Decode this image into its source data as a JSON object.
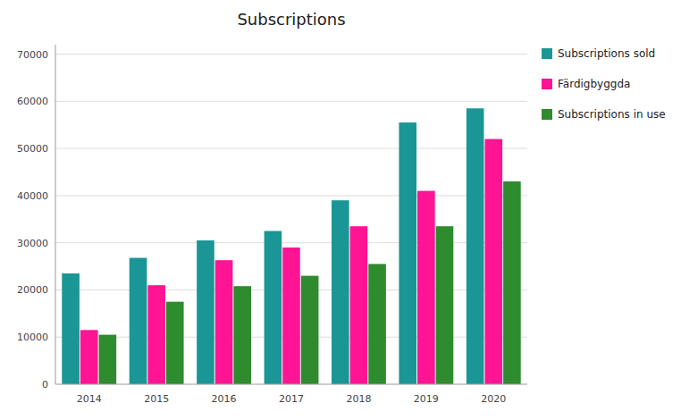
{
  "chart_data": {
    "type": "bar",
    "title": "Subscriptions",
    "categories": [
      "2014",
      "2015",
      "2016",
      "2017",
      "2018",
      "2019",
      "2020"
    ],
    "series": [
      {
        "name": "Subscriptions sold",
        "color": "#1a9696",
        "values": [
          23500,
          26800,
          30500,
          32500,
          39000,
          55500,
          58500
        ]
      },
      {
        "name": "Färdigbyggda",
        "color": "#FF1493",
        "values": [
          11500,
          21000,
          26300,
          29000,
          33500,
          41000,
          52000
        ]
      },
      {
        "name": "Subscriptions in use",
        "color": "#2e8b2e",
        "values": [
          10500,
          17500,
          20800,
          23000,
          25500,
          33500,
          43000
        ]
      }
    ],
    "ylim": [
      0,
      72000
    ],
    "yticks": [
      0,
      10000,
      20000,
      30000,
      40000,
      50000,
      60000,
      70000
    ],
    "grid": true,
    "legend": "right"
  }
}
